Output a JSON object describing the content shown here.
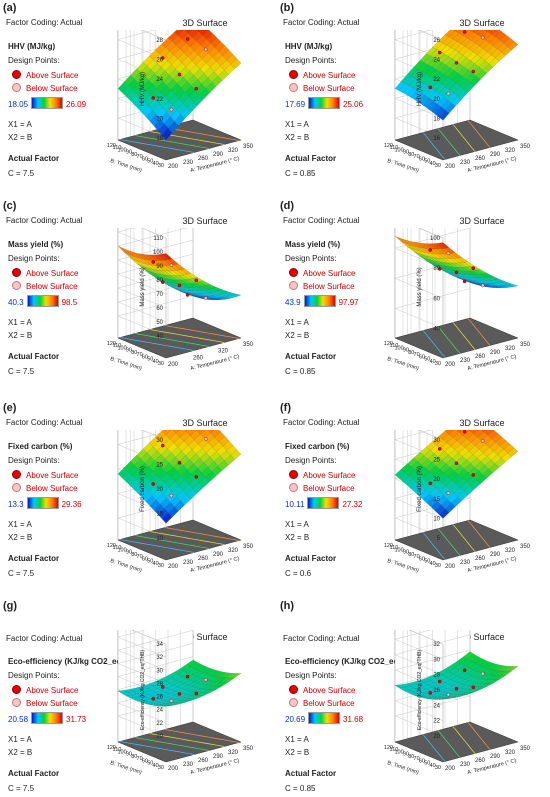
{
  "common": {
    "factor_coding": "Factor Coding: Actual",
    "plot_title": "3D Surface",
    "design_points": "Design Points:",
    "above": "Above Surface",
    "below": "Below Surface",
    "x1": "X1 = A",
    "x2": "X2 = B",
    "actual_factor": "Actual Factor",
    "x_axis": "A: Temperature (° C)",
    "y_axis": "B: Time (min)"
  },
  "chart_data": [
    {
      "label": "(a)",
      "type": "surface3d",
      "response": "HHV (MJ/kg)",
      "zlabel": "HHV (MJ/kg)",
      "min": "18.05",
      "max": "26.09",
      "factor": "C = 7.5",
      "zticks": [
        "18",
        "20",
        "22",
        "24",
        "26",
        "28"
      ],
      "zlim": [
        18,
        28
      ],
      "x_ticks": [
        "200",
        "230",
        "260",
        "290",
        "320",
        "350"
      ],
      "y_ticks": [
        "30",
        "40",
        "50",
        "60",
        "70",
        "80",
        "90",
        "100",
        "110",
        "120"
      ],
      "surface": {
        "a0b0": 17.8,
        "a1b0": 23.6,
        "a0b1": 21.0,
        "a1b1": 26.4,
        "curv": 0.4
      }
    },
    {
      "label": "(b)",
      "type": "surface3d",
      "response": "HHV (MJ/kg)",
      "zlabel": "HHV (MJ/kg)",
      "min": "17.69",
      "max": "25.06",
      "factor": "C = 0.85",
      "zticks": [
        "16",
        "18",
        "20",
        "22",
        "24",
        "26"
      ],
      "zlim": [
        16,
        26
      ],
      "x_ticks": [
        "200",
        "230",
        "260",
        "290",
        "320",
        "350"
      ],
      "y_ticks": [
        "30",
        "40",
        "50",
        "60",
        "70",
        "80",
        "90",
        "100",
        "110",
        "120"
      ],
      "surface": {
        "a0b0": 17.8,
        "a1b0": 23.5,
        "a0b1": 19.0,
        "a1b1": 24.8,
        "curv": 0.5
      }
    },
    {
      "label": "(c)",
      "type": "surface3d",
      "response": "Mass yield (%)",
      "zlabel": "Mass yield (%)",
      "min": "40.3",
      "max": "98.5",
      "factor": "C = 7.5",
      "zticks": [
        "40",
        "50",
        "60",
        "70",
        "80",
        "90",
        "100",
        "110"
      ],
      "zlim": [
        40,
        110
      ],
      "x_ticks": [
        "200",
        "260",
        "320",
        "350"
      ],
      "y_ticks": [
        "30",
        "40",
        "50",
        "60",
        "70",
        "80",
        "90",
        "100",
        "110",
        "120"
      ],
      "surface": {
        "a0b0": 99,
        "a1b0": 55,
        "a0b1": 90,
        "a1b1": 40,
        "curv": -8
      }
    },
    {
      "label": "(d)",
      "type": "surface3d",
      "response": "Mass yield (%)",
      "zlabel": "Mass yield (%)",
      "min": "43.9",
      "max": "97.97",
      "factor": "C = 0.85",
      "zticks": [
        "40",
        "60",
        "80",
        "100"
      ],
      "zlim": [
        35,
        100
      ],
      "x_ticks": [
        "200",
        "230",
        "260",
        "290",
        "320",
        "350"
      ],
      "y_ticks": [
        "30",
        "40",
        "50",
        "60",
        "70",
        "80",
        "90",
        "100",
        "110",
        "120"
      ],
      "surface": {
        "a0b0": 97,
        "a1b0": 55,
        "a0b1": 88,
        "a1b1": 44,
        "curv": -6
      }
    },
    {
      "label": "(e)",
      "type": "surface3d",
      "response": "Fixed carbon (%)",
      "zlabel": "Fixed carbon (%)",
      "min": "13.3",
      "max": "29.36",
      "factor": "C = 7.5",
      "zticks": [
        "10",
        "15",
        "20",
        "25",
        "30"
      ],
      "zlim": [
        10,
        30
      ],
      "x_ticks": [
        "200",
        "230",
        "260",
        "290",
        "320",
        "350"
      ],
      "y_ticks": [
        "30",
        "40",
        "50",
        "60",
        "70",
        "80",
        "90",
        "100",
        "110",
        "120"
      ],
      "surface": {
        "a0b0": 13,
        "a1b0": 23,
        "a0b1": 19,
        "a1b1": 29.4,
        "curv": 0.5
      }
    },
    {
      "label": "(f)",
      "type": "surface3d",
      "response": "Fixed carbon (%)",
      "zlabel": "Fixed carbon (%)",
      "min": "10.11",
      "max": "27.32",
      "factor": "C = 0.6",
      "zticks": [
        "5",
        "10",
        "15",
        "20",
        "25",
        "30"
      ],
      "zlim": [
        5,
        30
      ],
      "x_ticks": [
        "200",
        "230",
        "260",
        "290",
        "320",
        "350"
      ],
      "y_ticks": [
        "30",
        "40",
        "50",
        "60",
        "70",
        "80",
        "90",
        "100",
        "110",
        "120"
      ],
      "surface": {
        "a0b0": 10,
        "a1b0": 22,
        "a0b1": 16,
        "a1b1": 27.3,
        "curv": 0.5
      }
    },
    {
      "label": "(g)",
      "type": "surface3d",
      "response": "Eco-efficiency (KJ/kg CO2_eq*THB)",
      "zlabel": "Eco-efficiency (KJ/kg CO2_eq*THB)",
      "min": "20.58",
      "max": "31.73",
      "factor": "C = 7.5",
      "zticks": [
        "20",
        "22",
        "24",
        "26",
        "28",
        "30",
        "32",
        "34"
      ],
      "zlim": [
        20,
        34
      ],
      "x_ticks": [
        "200",
        "230",
        "260",
        "290",
        "320",
        "350"
      ],
      "y_ticks": [
        "30",
        "40",
        "50",
        "60",
        "70",
        "80",
        "90",
        "100",
        "110",
        "120"
      ],
      "surface": {
        "a0b0": 24.5,
        "a1b0": 26.5,
        "a0b1": 23.8,
        "a1b1": 25.5,
        "curv": -1.5
      }
    },
    {
      "label": "(h)",
      "type": "surface3d",
      "response": "Eco-efficiency (KJ/kg CO2_eq*THB)",
      "zlabel": "Eco-efficiency (KJ/kg CO2_eq*THB)",
      "min": "20.69",
      "max": "31.68",
      "factor": "C = 0.85",
      "zticks": [
        "20",
        "22",
        "24",
        "26",
        "28",
        "30",
        "32"
      ],
      "zlim": [
        20,
        32
      ],
      "x_ticks": [
        "200",
        "230",
        "260",
        "290",
        "320",
        "350"
      ],
      "y_ticks": [
        "30",
        "40",
        "50",
        "60",
        "70",
        "80",
        "90",
        "100",
        "110",
        "120"
      ],
      "surface": {
        "a0b0": 24.8,
        "a1b0": 26.5,
        "a0b1": 24.0,
        "a1b1": 25.8,
        "curv": -1.5
      }
    }
  ]
}
